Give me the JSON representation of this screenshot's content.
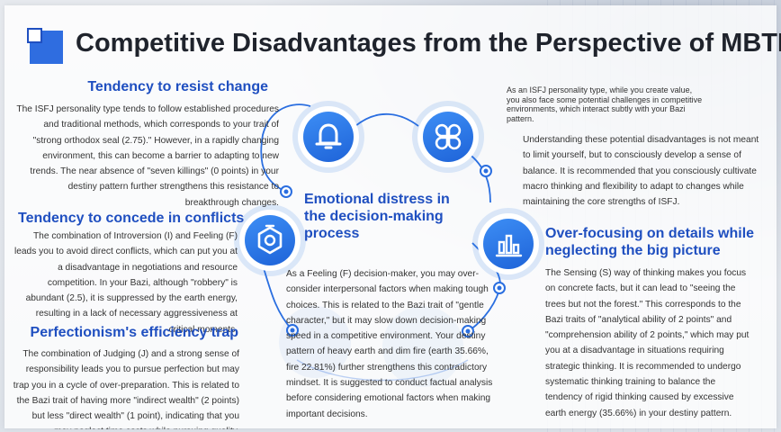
{
  "title": "Competitive Disadvantages from the Perspective of MBTI",
  "sections": {
    "resist_change": {
      "heading": "Tendency to resist change",
      "text": "The ISFJ personality type tends to follow established procedures and traditional methods, which corresponds to your trait of \"strong orthodox seal (2.75).\" However, in a rapidly changing environment, this can become a barrier to adapting to new trends. The near absence of \"seven killings\" (0 points) in your destiny pattern further strengthens this resistance to breakthrough changes."
    },
    "concede_conflicts": {
      "heading": "Tendency to concede in conflicts",
      "text": "The combination of Introversion (I) and Feeling (F) leads you to avoid direct conflicts, which can put you at a disadvantage in negotiations and resource competition. In your Bazi, although \"robbery\" is abundant (2.5), it is suppressed by the earth energy, resulting in a lack of necessary aggressiveness at critical moments."
    },
    "perfectionism": {
      "heading": "Perfectionism's efficiency trap",
      "text": "The combination of Judging (J) and a strong sense of responsibility leads you to pursue perfection but may trap you in a cycle of over-preparation. This is related to the Bazi trait of having more \"indirect wealth\" (2 points) but less \"direct wealth\" (1 point), indicating that you may neglect time costs while pursuing quality."
    },
    "emotional_distress": {
      "heading": "Emotional distress in the decision-making process",
      "text": "As a Feeling (F) decision-maker, you may over-consider interpersonal factors when making tough choices. This is related to the Bazi trait of \"gentle character,\" but it may slow down decision-making speed in a competitive environment. Your destiny pattern of heavy earth and dim fire (earth 35.66%, fire 22.81%) further strengthens this contradictory mindset. It is suggested to conduct factual analysis before considering emotional factors when making important decisions."
    },
    "intro": {
      "text": "As an ISFJ personality type, while you create value, you also face some potential challenges in competitive environments, which interact subtly with your Bazi pattern."
    },
    "understanding": {
      "text": "Understanding these potential disadvantages is not meant to limit yourself, but to consciously develop a sense of balance. It is recommended that you consciously cultivate macro thinking and flexibility to adapt to changes while maintaining the core strengths of ISFJ."
    },
    "over_focusing": {
      "heading": "Over-focusing on details while neglecting the big picture",
      "text": "The Sensing (S) way of thinking makes you focus on concrete facts, but it can lead to \"seeing the trees but not the forest.\" This corresponds to the Bazi traits of \"analytical ability of 2 points\" and \"comprehension ability of 2 points,\" which may put you at a disadvantage in situations requiring strategic thinking. It is recommended to undergo systematic thinking training to balance the tendency of rigid thinking caused by excessive earth energy (35.66%) in your destiny pattern."
    }
  },
  "icons": {
    "bell": "bell-icon",
    "clover": "clover-icon",
    "hexagon": "hexagon-gem-icon",
    "chart": "bar-chart-icon"
  },
  "colors": {
    "accent": "#1f4fc0",
    "icon_fill": "#2a78e4",
    "title": "#1f232c"
  }
}
